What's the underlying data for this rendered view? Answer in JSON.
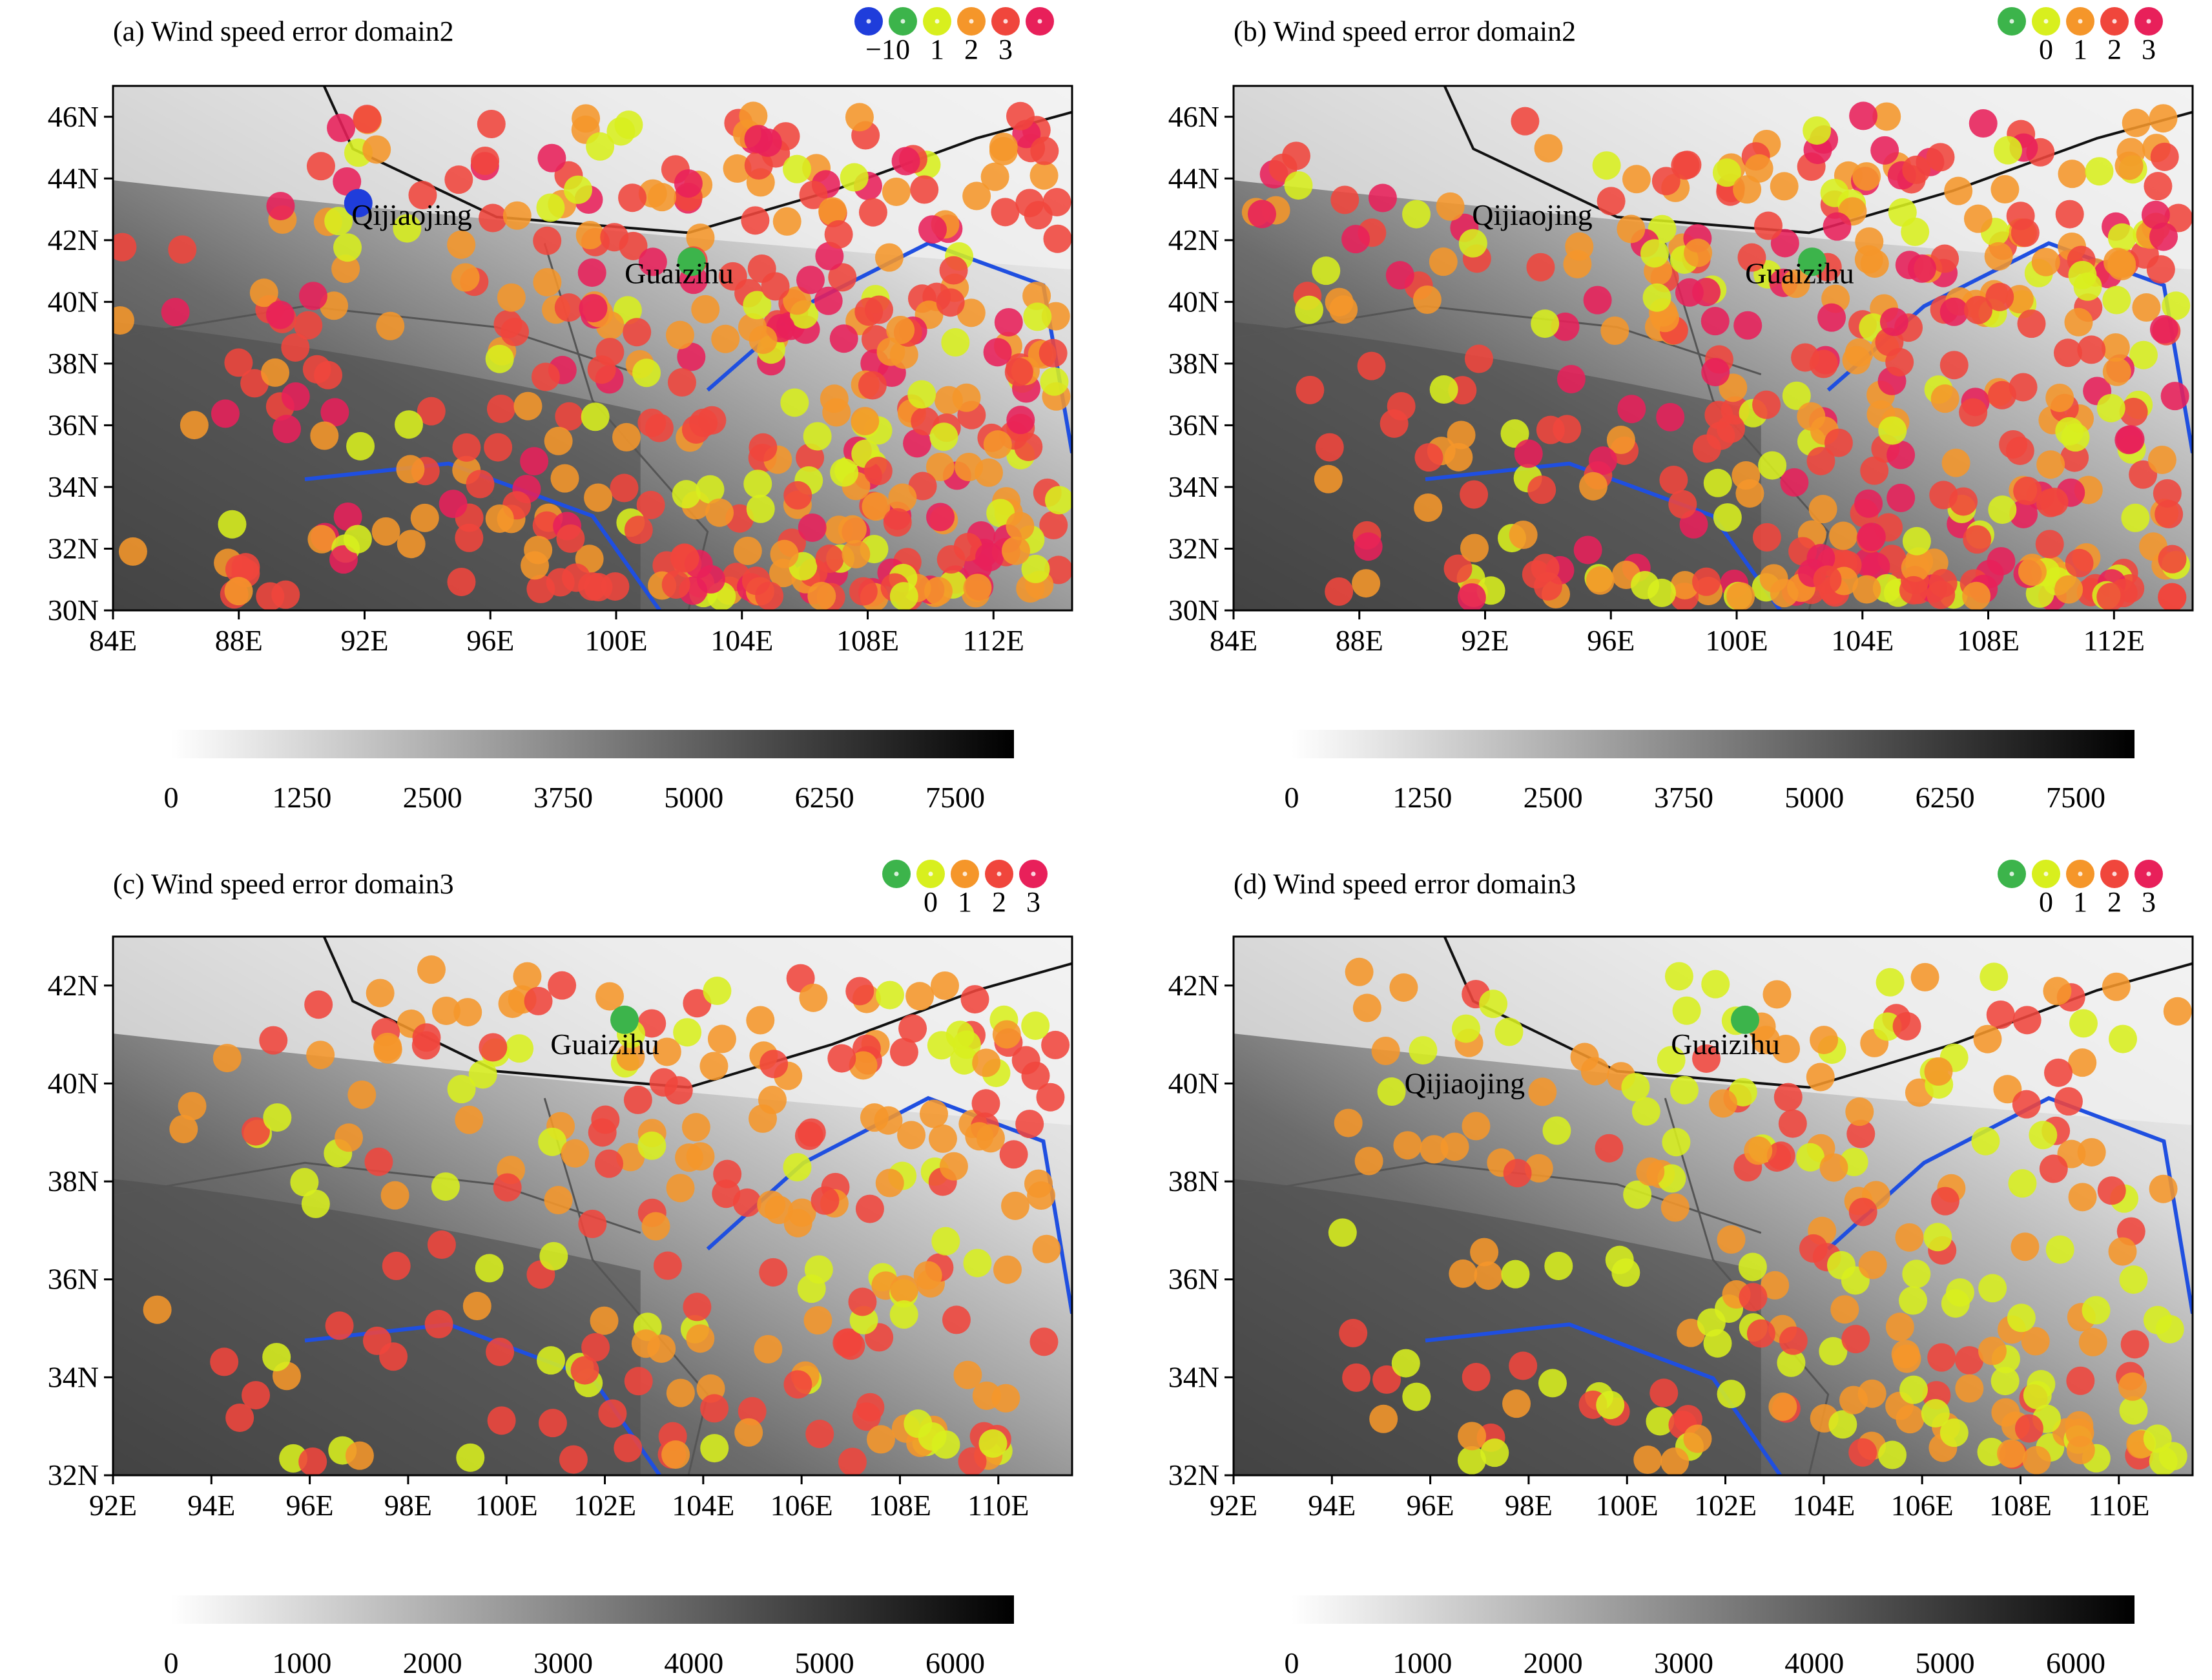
{
  "figure": {
    "panels": [
      {
        "id": "a",
        "title": "(a) Wind speed error domain2",
        "error_legend": [
          "−1",
          "0",
          "1",
          "2",
          "3"
        ],
        "error_legend_colors": [
          "#1f3ddb",
          "#3cb44b",
          "#d8ef1e",
          "#f5962a",
          "#f0463c",
          "#e8205a"
        ],
        "x_ticks": [
          "84E",
          "88E",
          "92E",
          "96E",
          "100E",
          "104E",
          "108E",
          "112E"
        ],
        "y_ticks": [
          "30N",
          "32N",
          "34N",
          "36N",
          "38N",
          "40N",
          "42N",
          "44N",
          "46N"
        ],
        "lon_range": [
          84,
          114.5
        ],
        "lat_range": [
          30,
          47
        ],
        "place_labels": [
          {
            "name": "Qijiaojing",
            "lon": 93.5,
            "lat": 42.5
          },
          {
            "name": "Guaizihu",
            "lon": 102.0,
            "lat": 40.6
          }
        ],
        "elevation_colorbar": [
          "0",
          "1250",
          "2500",
          "3750",
          "5000",
          "6250",
          "7500"
        ],
        "seed": 11
      },
      {
        "id": "b",
        "title": "(b) Wind speed error domain2",
        "error_legend": [
          "0",
          "1",
          "2",
          "3"
        ],
        "error_legend_colors": [
          "#3cb44b",
          "#d8ef1e",
          "#f5962a",
          "#f0463c",
          "#e8205a"
        ],
        "x_ticks": [
          "84E",
          "88E",
          "92E",
          "96E",
          "100E",
          "104E",
          "108E",
          "112E"
        ],
        "y_ticks": [
          "30N",
          "32N",
          "34N",
          "36N",
          "38N",
          "40N",
          "42N",
          "44N",
          "46N"
        ],
        "lon_range": [
          84,
          114.5
        ],
        "lat_range": [
          30,
          47
        ],
        "place_labels": [
          {
            "name": "Qijiaojing",
            "lon": 93.5,
            "lat": 42.5
          },
          {
            "name": "Guaizihu",
            "lon": 102.0,
            "lat": 40.6
          }
        ],
        "elevation_colorbar": [
          "0",
          "1250",
          "2500",
          "3750",
          "5000",
          "6250",
          "7500"
        ],
        "seed": 23
      },
      {
        "id": "c",
        "title": "(c) Wind speed error domain3",
        "error_legend": [
          "0",
          "1",
          "2",
          "3"
        ],
        "error_legend_colors": [
          "#3cb44b",
          "#d8ef1e",
          "#f5962a",
          "#f0463c",
          "#e8205a"
        ],
        "x_ticks": [
          "92E",
          "94E",
          "96E",
          "98E",
          "100E",
          "102E",
          "104E",
          "106E",
          "108E",
          "110E"
        ],
        "y_ticks": [
          "32N",
          "34N",
          "36N",
          "38N",
          "40N",
          "42N"
        ],
        "lon_range": [
          92,
          111.5
        ],
        "lat_range": [
          32,
          43
        ],
        "place_labels": [
          {
            "name": "Guaizihu",
            "lon": 102.0,
            "lat": 40.6
          }
        ],
        "elevation_colorbar": [
          "0",
          "1000",
          "2000",
          "3000",
          "4000",
          "5000",
          "6000"
        ],
        "seed": 37
      },
      {
        "id": "d",
        "title": "(d) Wind speed error domain3",
        "error_legend": [
          "0",
          "1",
          "2",
          "3"
        ],
        "error_legend_colors": [
          "#3cb44b",
          "#d8ef1e",
          "#f5962a",
          "#f0463c",
          "#e8205a"
        ],
        "x_ticks": [
          "92E",
          "94E",
          "96E",
          "98E",
          "100E",
          "102E",
          "104E",
          "106E",
          "108E",
          "110E"
        ],
        "y_ticks": [
          "32N",
          "34N",
          "36N",
          "38N",
          "40N",
          "42N"
        ],
        "lon_range": [
          92,
          111.5
        ],
        "lat_range": [
          32,
          43
        ],
        "place_labels": [
          {
            "name": "Qijiaojing",
            "lon": 96.7,
            "lat": 39.8
          },
          {
            "name": "Guaizihu",
            "lon": 102.0,
            "lat": 40.6
          }
        ],
        "elevation_colorbar": [
          "0",
          "1000",
          "2000",
          "3000",
          "4000",
          "5000",
          "6000"
        ],
        "seed": 53
      }
    ],
    "colors": {
      "river": "#1f4fe0",
      "border": "#111111",
      "province": "#555555"
    }
  }
}
